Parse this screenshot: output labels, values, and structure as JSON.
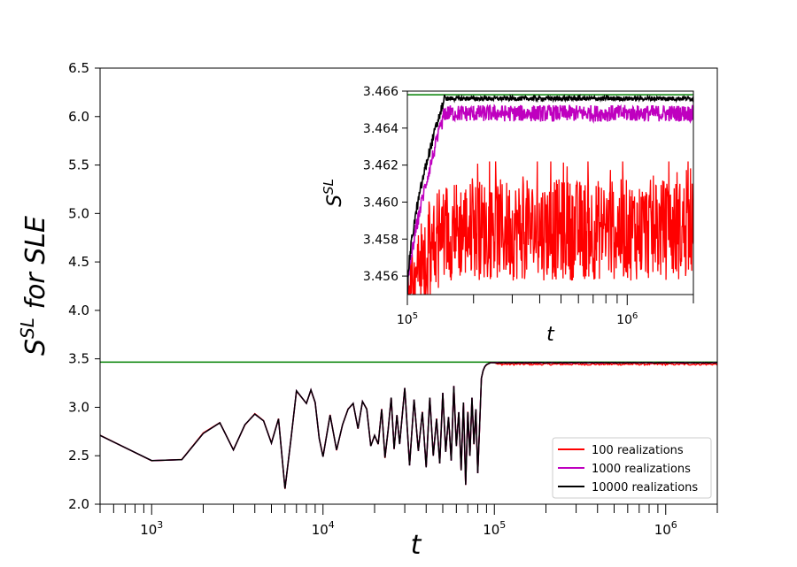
{
  "chart_data": [
    {
      "type": "line",
      "title": "",
      "xlabel": "t",
      "ylabel": "S^SL for SLE",
      "ylabel_main": "S",
      "ylabel_sup": "SL",
      "ylabel_suffix": " for SLE",
      "xscale": "log",
      "xlim": [
        500,
        2000000
      ],
      "ylim": [
        2.0,
        6.5
      ],
      "yticks": [
        2.0,
        2.5,
        3.0,
        3.5,
        4.0,
        4.5,
        5.0,
        5.5,
        6.0,
        6.5
      ],
      "ytick_labels": [
        "2.0",
        "2.5",
        "3.0",
        "3.5",
        "4.0",
        "4.5",
        "5.0",
        "5.5",
        "6.0",
        "6.5"
      ],
      "xtick_labels": [
        {
          "value": 1000,
          "base": "10",
          "exp": "3"
        },
        {
          "value": 10000,
          "base": "10",
          "exp": "4"
        },
        {
          "value": 100000,
          "base": "10",
          "exp": "5"
        },
        {
          "value": 1000000,
          "base": "10",
          "exp": "6"
        }
      ],
      "reference_line": {
        "y": 3.466,
        "color": "#008000"
      },
      "legend_position": "lower-right",
      "series": [
        {
          "name": "100 realizations",
          "color": "#ff0000",
          "plateau": 3.4585
        },
        {
          "name": "1000 realizations",
          "color": "#bf00bf",
          "plateau": 3.4648
        },
        {
          "name": "10000 realizations",
          "color": "#000000",
          "plateau": 3.4656
        }
      ],
      "early_data": {
        "t": [
          500,
          1000,
          1500,
          2000,
          2500,
          3000,
          3500,
          4000,
          4500,
          5000,
          5500,
          6000,
          6500,
          7000,
          8000,
          8500,
          9000,
          9500,
          10000,
          11000,
          12000,
          13000,
          14000,
          15000,
          16000,
          17000,
          18000,
          19000,
          20000,
          21000,
          22000,
          23000,
          24000,
          25000,
          26000,
          27000,
          28000,
          30000,
          32000,
          34000,
          36000,
          38000,
          40000,
          42000,
          44000,
          46000,
          48000,
          50000,
          52000,
          54000,
          56000,
          58000,
          60000,
          62000,
          64000,
          66000,
          68000,
          70000,
          72000,
          74000,
          76000,
          78000,
          80000,
          82000,
          84000,
          86000,
          88000,
          90000,
          95000,
          100000
        ],
        "y": [
          2.71,
          2.45,
          2.46,
          2.73,
          2.84,
          2.56,
          2.82,
          2.93,
          2.86,
          2.63,
          2.88,
          2.16,
          2.67,
          3.17,
          3.04,
          3.18,
          3.05,
          2.68,
          2.49,
          2.92,
          2.56,
          2.82,
          2.98,
          3.04,
          2.78,
          3.06,
          2.98,
          2.6,
          2.71,
          2.62,
          2.98,
          2.48,
          2.77,
          3.1,
          2.57,
          2.92,
          2.62,
          3.2,
          2.4,
          3.08,
          2.55,
          2.95,
          2.38,
          3.1,
          2.5,
          2.88,
          2.42,
          3.15,
          2.54,
          2.9,
          2.45,
          3.22,
          2.6,
          2.95,
          2.35,
          3.05,
          2.2,
          2.95,
          2.5,
          3.1,
          2.62,
          2.98,
          2.32,
          2.8,
          3.3,
          3.38,
          3.42,
          3.44,
          3.46,
          3.46
        ]
      }
    },
    {
      "type": "line",
      "title": "",
      "xlabel": "t",
      "ylabel": "S^SL",
      "ylabel_main": "S",
      "ylabel_sup": "SL",
      "xscale": "log",
      "xlim": [
        100000,
        2000000
      ],
      "ylim": [
        3.455,
        3.466
      ],
      "yticks": [
        3.456,
        3.458,
        3.46,
        3.462,
        3.464,
        3.466
      ],
      "ytick_labels": [
        "3.456",
        "3.458",
        "3.460",
        "3.462",
        "3.464",
        "3.466"
      ],
      "xtick_labels": [
        {
          "value": 100000,
          "base": "10",
          "exp": "5"
        },
        {
          "value": 1000000,
          "base": "10",
          "exp": "6"
        }
      ],
      "reference_line": {
        "y": 3.4658,
        "color": "#008000"
      },
      "series": [
        {
          "name": "100 realizations",
          "color": "#ff0000",
          "plateau": 3.4585,
          "min": 3.455,
          "max": 3.4622
        },
        {
          "name": "1000 realizations",
          "color": "#bf00bf",
          "plateau": 3.4648,
          "min": 3.4637,
          "max": 3.4654
        },
        {
          "name": "10000 realizations",
          "color": "#000000",
          "plateau": 3.4656,
          "min": 3.4654,
          "max": 3.4658
        }
      ]
    }
  ]
}
